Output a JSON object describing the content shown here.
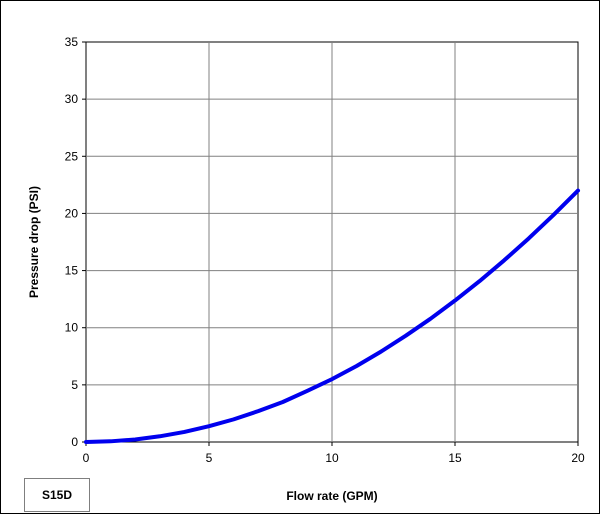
{
  "chart_data": {
    "type": "line",
    "title": "",
    "xlabel": "Flow rate (GPM)",
    "ylabel": "Pressure drop (PSI)",
    "xlim": [
      0,
      20
    ],
    "ylim": [
      0,
      35
    ],
    "x_ticks": [
      "0",
      "5",
      "10",
      "15",
      "20"
    ],
    "y_ticks": [
      "0",
      "5",
      "10",
      "15",
      "20",
      "25",
      "30",
      "35"
    ],
    "grid": true,
    "legend": "none",
    "series_color": "#0000ee",
    "series": [
      {
        "x": [
          0,
          1,
          2,
          3,
          4,
          5,
          6,
          7,
          8,
          9,
          10,
          11,
          12,
          13,
          14,
          15,
          16,
          17,
          18,
          19,
          20
        ],
        "values": [
          0,
          0.06,
          0.22,
          0.5,
          0.88,
          1.38,
          1.98,
          2.7,
          3.5,
          4.48,
          5.5,
          6.65,
          7.92,
          9.3,
          10.78,
          12.38,
          14.08,
          15.9,
          17.82,
          19.86,
          22.0
        ]
      }
    ]
  },
  "tag": "S15D"
}
